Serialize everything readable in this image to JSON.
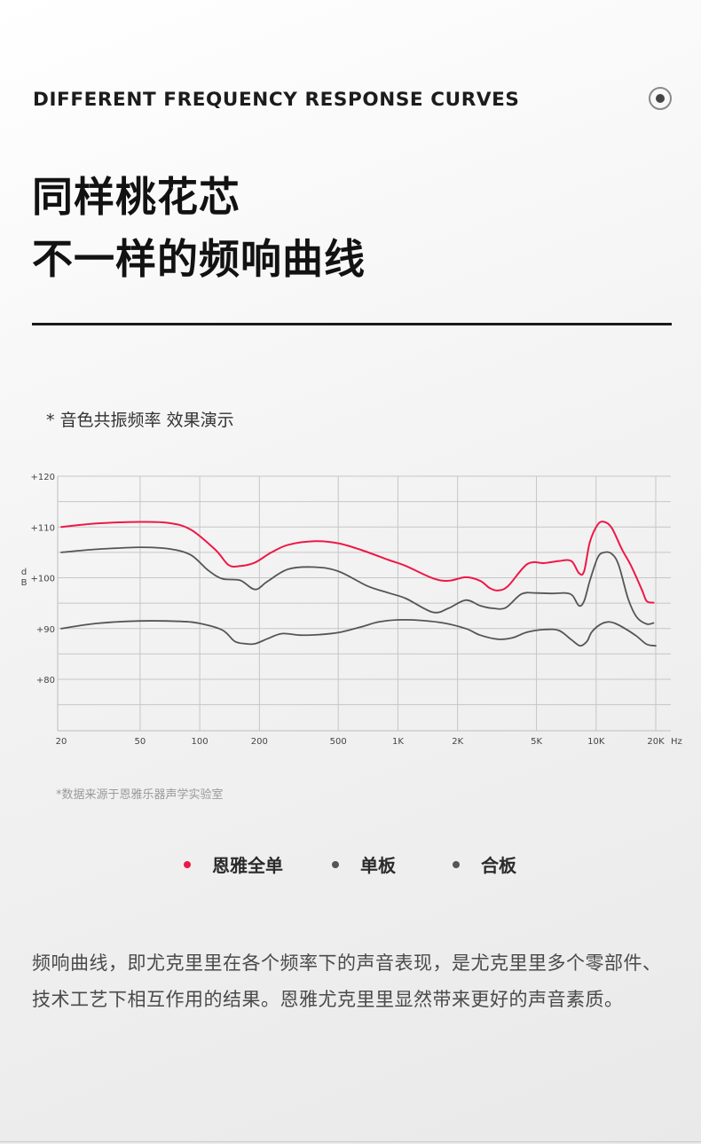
{
  "header": {
    "heading_en": "DIFFERENT FREQUENCY RESPONSE CURVES",
    "icon": "target-icon",
    "title_line1": "同样桃花芯",
    "title_line2": "不一样的频响曲线"
  },
  "chart_note": "* 音色共振频率 效果演示",
  "source_note": "*数据来源于恩雅乐器声学实验室",
  "body_text": "频响曲线，即尤克里里在各个频率下的声音表现，是尤克里里多个零部件、技术工艺下相互作用的结果。恩雅尤克里里显然带来更好的声音素质。",
  "legend": [
    {
      "label": "恩雅全单",
      "color": "#ee1848"
    },
    {
      "label": "单板",
      "color": "#555555"
    },
    {
      "label": "合板",
      "color": "#555555"
    }
  ],
  "chart_data": {
    "type": "line",
    "title": "",
    "xlabel": "Hz",
    "ylabel": "dB",
    "x_scale": "log",
    "xlim": [
      20,
      20000
    ],
    "ylim": [
      75,
      122
    ],
    "x_ticks": [
      {
        "value": 20,
        "label": "20"
      },
      {
        "value": 50,
        "label": "50"
      },
      {
        "value": 100,
        "label": "100"
      },
      {
        "value": 200,
        "label": "200"
      },
      {
        "value": 500,
        "label": "500"
      },
      {
        "value": 1000,
        "label": "1K"
      },
      {
        "value": 2000,
        "label": "2K"
      },
      {
        "value": 5000,
        "label": "5K"
      },
      {
        "value": 10000,
        "label": "10K"
      },
      {
        "value": 20000,
        "label": "20K"
      }
    ],
    "y_ticks": [
      {
        "value": 120,
        "label": "+120"
      },
      {
        "value": 110,
        "label": "+110"
      },
      {
        "value": 100,
        "label": "+100"
      },
      {
        "value": 90,
        "label": "+90"
      },
      {
        "value": 80,
        "label": "+80"
      }
    ],
    "grid": true,
    "series": [
      {
        "name": "恩雅全单",
        "color": "#ee1848",
        "x": [
          20,
          30,
          50,
          70,
          90,
          120,
          140,
          160,
          190,
          230,
          280,
          380,
          500,
          650,
          900,
          1100,
          1500,
          1800,
          2200,
          2600,
          2900,
          3200,
          3600,
          4500,
          5500,
          6500,
          7500,
          8200,
          8700,
          9300,
          10200,
          11000,
          12000,
          13500,
          15000,
          17000,
          18000,
          19500
        ],
        "y": [
          110,
          110.7,
          111,
          110.8,
          109.5,
          105.5,
          102.5,
          102.3,
          103,
          105,
          106.5,
          107.2,
          106.8,
          105.5,
          103.5,
          102.3,
          99.9,
          99.4,
          100.1,
          99.4,
          98,
          97.5,
          98.4,
          102.7,
          102.9,
          103.3,
          103.3,
          100.9,
          101.3,
          107,
          110.5,
          111,
          109.8,
          105.6,
          102.4,
          97.7,
          95.4,
          95.1
        ]
      },
      {
        "name": "单板",
        "color": "#555555",
        "x": [
          20,
          30,
          50,
          70,
          90,
          110,
          130,
          160,
          190,
          220,
          280,
          380,
          500,
          700,
          900,
          1100,
          1500,
          1800,
          2200,
          2600,
          3000,
          3500,
          4200,
          5000,
          6000,
          7000,
          7600,
          8200,
          8700,
          9300,
          10200,
          11000,
          12000,
          13000,
          14500,
          16000,
          18000,
          19500
        ],
        "y": [
          105,
          105.6,
          106,
          105.7,
          104.5,
          101.5,
          99.8,
          99.5,
          97.7,
          99.3,
          101.7,
          102.1,
          101.3,
          98.4,
          97,
          95.9,
          93.2,
          94,
          95.6,
          94.5,
          94,
          94.1,
          96.8,
          97,
          96.9,
          97,
          96.5,
          94.5,
          95.4,
          99.4,
          104,
          105,
          104.7,
          102.5,
          95.9,
          92.3,
          90.9,
          91.1
        ]
      },
      {
        "name": "合板",
        "color": "#555555",
        "x": [
          20,
          30,
          50,
          80,
          100,
          130,
          150,
          170,
          190,
          220,
          260,
          320,
          400,
          500,
          650,
          800,
          1000,
          1300,
          1700,
          2200,
          2600,
          3200,
          3800,
          4500,
          5500,
          6500,
          7500,
          8300,
          9000,
          9500,
          10500,
          11500,
          12500,
          14000,
          16000,
          18000,
          20000
        ],
        "y": [
          90,
          91,
          91.5,
          91.4,
          91,
          89.7,
          87.5,
          87,
          87,
          88,
          89,
          88.7,
          88.8,
          89.2,
          90.3,
          91.3,
          91.7,
          91.6,
          91.1,
          90,
          88.7,
          87.9,
          88.2,
          89.3,
          89.8,
          89.6,
          87.8,
          86.6,
          87.5,
          89.3,
          90.8,
          91.3,
          91,
          90,
          88.5,
          86.9,
          86.6
        ]
      }
    ]
  }
}
